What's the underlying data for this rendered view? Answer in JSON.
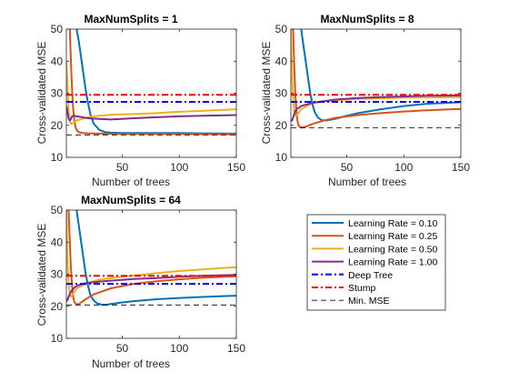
{
  "colors": {
    "lr010": "#0072BD",
    "lr025": "#D95319",
    "lr050": "#EDB120",
    "lr100": "#7E2F8E",
    "deep_tree": "#0000FF",
    "stump": "#FF0000",
    "min_mse": "#000000",
    "axis": "#262626",
    "background": "#FFFFFF"
  },
  "legend": {
    "placement": "lower-right empty tile",
    "entries": [
      {
        "label": "Learning Rate = 0.10",
        "color_key": "lr010",
        "style": "solid"
      },
      {
        "label": "Learning Rate = 0.25",
        "color_key": "lr025",
        "style": "solid"
      },
      {
        "label": "Learning Rate = 0.50",
        "color_key": "lr050",
        "style": "solid"
      },
      {
        "label": "Learning Rate = 1.00",
        "color_key": "lr100",
        "style": "solid"
      },
      {
        "label": "Deep Tree",
        "color_key": "deep_tree",
        "style": "dashdot"
      },
      {
        "label": "Stump",
        "color_key": "stump",
        "style": "dashdot"
      },
      {
        "label": "Min. MSE",
        "color_key": "min_mse",
        "style": "dashed"
      }
    ]
  },
  "chart_data": [
    {
      "type": "line",
      "title": "MaxNumSplits = 1",
      "xlabel": "Number of trees",
      "ylabel": "Cross-validated MSE",
      "xlim": [
        1,
        150
      ],
      "ylim": [
        10,
        50
      ],
      "xticks": [
        50,
        100,
        150
      ],
      "yticks": [
        10,
        20,
        30,
        40,
        50
      ],
      "grid": false,
      "series": [
        {
          "name": "Learning Rate = 0.10",
          "color_key": "lr010",
          "x": [
            10,
            12,
            14,
            16,
            18,
            20,
            22,
            25,
            30,
            35,
            40,
            50,
            60,
            80,
            100,
            120,
            150
          ],
          "y": [
            50,
            46,
            41,
            36,
            31,
            27,
            23.5,
            20.5,
            18.5,
            17.9,
            17.7,
            17.6,
            17.6,
            17.6,
            17.6,
            17.5,
            17.4
          ]
        },
        {
          "name": "Learning Rate = 0.25",
          "color_key": "lr025",
          "x": [
            4,
            5,
            6,
            7,
            8,
            9,
            10,
            12,
            15,
            20,
            30,
            50,
            80,
            100,
            150
          ],
          "y": [
            50,
            40,
            31,
            25,
            21.5,
            19.5,
            18.5,
            17.8,
            17.6,
            17.5,
            17.4,
            17.3,
            17.3,
            17.3,
            17.2
          ]
        },
        {
          "name": "Learning Rate = 0.50",
          "color_key": "lr050",
          "x": [
            1,
            2,
            3,
            4,
            5,
            6,
            8,
            10,
            15,
            20,
            30,
            40,
            60,
            80,
            100,
            120,
            150
          ],
          "y": [
            40,
            32,
            25,
            21.5,
            20.5,
            20.5,
            21,
            21.5,
            22,
            22.5,
            23,
            23.3,
            23.5,
            23.8,
            24.2,
            24.5,
            25
          ]
        },
        {
          "name": "Learning Rate = 1.00",
          "color_key": "lr100",
          "x": [
            1,
            2,
            3,
            4,
            5,
            6,
            8,
            10,
            15,
            20,
            30,
            40,
            60,
            80,
            100,
            120,
            150
          ],
          "y": [
            26,
            24,
            22,
            21.5,
            22,
            22.8,
            23,
            22.8,
            22.5,
            22.2,
            22,
            21.8,
            22.2,
            22.5,
            22.8,
            23,
            23.2
          ]
        },
        {
          "name": "Deep Tree",
          "color_key": "deep_tree",
          "dash": "dashdot",
          "x": [
            1,
            150
          ],
          "y": [
            27.3,
            27.3
          ]
        },
        {
          "name": "Stump",
          "color_key": "stump",
          "dash": "dashdot",
          "x": [
            1,
            150
          ],
          "y": [
            29.5,
            29.5
          ]
        },
        {
          "name": "Min. MSE",
          "color_key": "min_mse",
          "dash": "dashed",
          "x": [
            1,
            150
          ],
          "y": [
            17,
            17
          ]
        }
      ]
    },
    {
      "type": "line",
      "title": "MaxNumSplits = 8",
      "xlabel": "Number of trees",
      "ylabel": "Cross-validated MSE",
      "xlim": [
        1,
        150
      ],
      "ylim": [
        10,
        50
      ],
      "xticks": [
        50,
        100,
        150
      ],
      "yticks": [
        10,
        20,
        30,
        40,
        50
      ],
      "grid": false,
      "series": [
        {
          "name": "Learning Rate = 0.10",
          "color_key": "lr010",
          "x": [
            10,
            12,
            14,
            16,
            18,
            20,
            22,
            25,
            28,
            32,
            40,
            50,
            60,
            80,
            100,
            120,
            150
          ],
          "y": [
            50,
            45,
            40,
            35,
            30,
            26.5,
            24,
            22.3,
            21.6,
            21.5,
            22,
            23,
            23.8,
            25,
            26,
            26.7,
            27.2
          ]
        },
        {
          "name": "Learning Rate = 0.25",
          "color_key": "lr025",
          "x": [
            3,
            4,
            5,
            6,
            7,
            8,
            10,
            12,
            15,
            20,
            30,
            40,
            60,
            80,
            100,
            120,
            150
          ],
          "y": [
            50,
            38,
            29,
            24,
            21,
            19.8,
            19.3,
            19.4,
            19.7,
            20.4,
            21.5,
            22.3,
            23.2,
            23.8,
            24.3,
            24.7,
            25.1
          ]
        },
        {
          "name": "Learning Rate = 0.50",
          "color_key": "lr050",
          "x": [
            1,
            2,
            3,
            4,
            5,
            6,
            8,
            10,
            15,
            20,
            30,
            40,
            60,
            80,
            100,
            120,
            150
          ],
          "y": [
            50,
            36,
            28,
            24,
            23,
            23,
            24,
            25,
            26,
            27,
            27.5,
            27.8,
            28.2,
            28.4,
            28.6,
            28.7,
            28.8
          ]
        },
        {
          "name": "Learning Rate = 1.00",
          "color_key": "lr100",
          "x": [
            1,
            2,
            3,
            4,
            5,
            6,
            8,
            10,
            15,
            20,
            30,
            40,
            60,
            80,
            100,
            120,
            150
          ],
          "y": [
            21.5,
            21.5,
            22.5,
            23.5,
            24.5,
            25,
            25.5,
            26,
            26.5,
            27,
            27.5,
            28,
            28.5,
            28.8,
            29,
            29.2,
            29.3
          ]
        },
        {
          "name": "Deep Tree",
          "color_key": "deep_tree",
          "dash": "dashdot",
          "x": [
            1,
            150
          ],
          "y": [
            27.3,
            27.3
          ]
        },
        {
          "name": "Stump",
          "color_key": "stump",
          "dash": "dashdot",
          "x": [
            1,
            150
          ],
          "y": [
            29.5,
            29.5
          ]
        },
        {
          "name": "Min. MSE",
          "color_key": "min_mse",
          "dash": "dashed",
          "x": [
            1,
            150
          ],
          "y": [
            19.2,
            19.2
          ]
        }
      ]
    },
    {
      "type": "line",
      "title": "MaxNumSplits = 64",
      "xlabel": "Number of trees",
      "ylabel": "Cross-validated MSE",
      "xlim": [
        1,
        150
      ],
      "ylim": [
        10,
        50
      ],
      "xticks": [
        50,
        100,
        150
      ],
      "yticks": [
        10,
        20,
        30,
        40,
        50
      ],
      "grid": false,
      "series": [
        {
          "name": "Learning Rate = 0.10",
          "color_key": "lr010",
          "x": [
            10,
            12,
            14,
            16,
            18,
            20,
            22,
            25,
            28,
            32,
            36,
            40,
            50,
            60,
            80,
            100,
            120,
            150
          ],
          "y": [
            50,
            45,
            40,
            35,
            30,
            26.5,
            23.5,
            21.8,
            20.9,
            20.5,
            20.5,
            20.7,
            21.2,
            21.6,
            22.2,
            22.6,
            22.9,
            23.3
          ]
        },
        {
          "name": "Learning Rate = 0.25",
          "color_key": "lr025",
          "x": [
            3,
            4,
            5,
            6,
            7,
            8,
            10,
            12,
            14,
            18,
            25,
            40,
            60,
            80,
            100,
            120,
            150
          ],
          "y": [
            50,
            40,
            32,
            26.5,
            23,
            21.3,
            20.6,
            20.7,
            21.2,
            22.2,
            23.7,
            25.6,
            27,
            27.8,
            28.4,
            28.9,
            29.4
          ]
        },
        {
          "name": "Learning Rate = 0.50",
          "color_key": "lr050",
          "x": [
            1,
            2,
            3,
            4,
            5,
            6,
            8,
            10,
            15,
            20,
            30,
            40,
            60,
            80,
            100,
            120,
            150
          ],
          "y": [
            50,
            34,
            27,
            24,
            23,
            23.5,
            24.5,
            25.5,
            26.5,
            27.3,
            28.3,
            28.8,
            29.6,
            30.3,
            31,
            31.5,
            32.2
          ]
        },
        {
          "name": "Learning Rate = 1.00",
          "color_key": "lr100",
          "x": [
            1,
            2,
            3,
            4,
            5,
            6,
            8,
            10,
            15,
            20,
            30,
            40,
            60,
            80,
            100,
            120,
            150
          ],
          "y": [
            21.5,
            22,
            23,
            23.8,
            24.5,
            25,
            25.8,
            26.3,
            27,
            27.3,
            27.7,
            28,
            28.5,
            28.8,
            29.2,
            29.5,
            29.8
          ]
        },
        {
          "name": "Deep Tree",
          "color_key": "deep_tree",
          "dash": "dashdot",
          "x": [
            1,
            150
          ],
          "y": [
            27,
            27
          ]
        },
        {
          "name": "Stump",
          "color_key": "stump",
          "dash": "dashdot",
          "x": [
            1,
            150
          ],
          "y": [
            29.5,
            29.5
          ]
        },
        {
          "name": "Min. MSE",
          "color_key": "min_mse",
          "dash": "dashed",
          "x": [
            1,
            150
          ],
          "y": [
            20.4,
            20.4
          ]
        }
      ]
    }
  ]
}
